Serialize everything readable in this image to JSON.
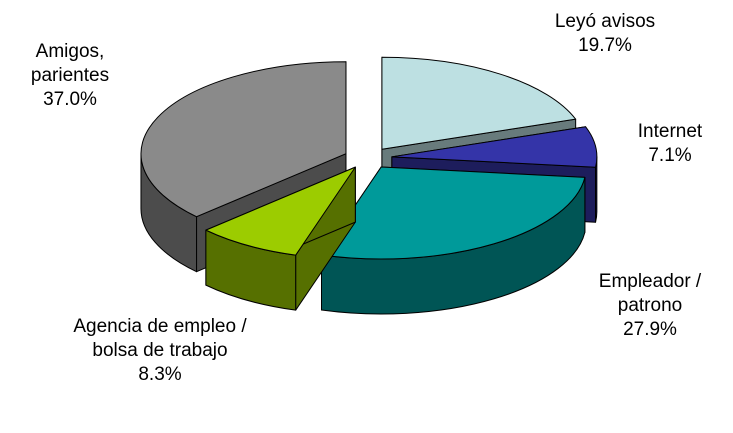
{
  "chart_data": {
    "type": "pie3d",
    "categories": [
      "Leyó avisos",
      "Internet",
      "Empleador / patrono",
      "Agencia de empleo / bolsa de trabajo",
      "Amigos, parientes"
    ],
    "values": [
      19.7,
      7.1,
      27.9,
      8.3,
      37.0
    ],
    "value_labels": [
      "19.7%",
      "7.1%",
      "27.9%",
      "8.3%",
      "37.0%"
    ],
    "colors": [
      "#bde0e2",
      "#3434a8",
      "#009a9a",
      "#9ccc00",
      "#8a8a8a"
    ]
  }
}
